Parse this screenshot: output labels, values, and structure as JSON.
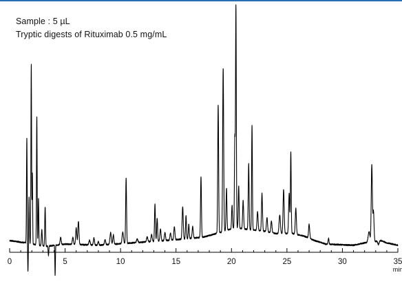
{
  "page": {
    "accent_color": "#2a6db5"
  },
  "annotations": {
    "line1": "Sample : 5 µL",
    "line2": "Tryptic digests of Rituximab 0.5 mg/mL"
  },
  "chart_data": {
    "type": "line",
    "title": "",
    "xlabel": "min",
    "ylabel": "",
    "xlim": [
      0,
      35
    ],
    "ylim": [
      -0.12,
      1.0
    ],
    "x_ticks": [
      0,
      5,
      10,
      15,
      20,
      25,
      30,
      35
    ],
    "x_tick_labels": [
      "0",
      "5",
      "10",
      "15",
      "20",
      "25",
      "30",
      "35"
    ],
    "line_color": "#000000",
    "grid": false,
    "baseline_segments": [
      [
        [
          0,
          0.0
        ],
        [
          1.5,
          -0.01
        ],
        [
          3.2,
          -0.025
        ],
        [
          5.0,
          -0.015
        ],
        [
          8.0,
          -0.02
        ],
        [
          11.0,
          -0.01
        ],
        [
          14.0,
          0.0
        ],
        [
          16.5,
          0.01
        ],
        [
          17.5,
          0.015
        ],
        [
          19.0,
          0.035
        ],
        [
          20.3,
          0.055
        ],
        [
          22.0,
          0.045
        ],
        [
          23.0,
          0.04
        ],
        [
          24.0,
          0.03
        ],
        [
          25.5,
          0.03
        ],
        [
          26.5,
          0.02
        ],
        [
          27.5,
          0.0
        ],
        [
          28.5,
          -0.015
        ],
        [
          31.0,
          -0.02
        ],
        [
          32.0,
          -0.01
        ],
        [
          33.5,
          0.0
        ],
        [
          34.0,
          -0.01
        ],
        [
          35.0,
          -0.02
        ]
      ]
    ],
    "peaks": [
      [
        1.55,
        0.45,
        0.03
      ],
      [
        1.65,
        -0.12,
        0.03
      ],
      [
        1.75,
        0.2,
        0.03
      ],
      [
        1.95,
        0.77,
        0.03
      ],
      [
        2.05,
        0.3,
        0.025
      ],
      [
        2.45,
        0.55,
        0.03
      ],
      [
        2.6,
        0.2,
        0.03
      ],
      [
        2.9,
        0.07,
        0.04
      ],
      [
        3.2,
        0.17,
        0.035
      ],
      [
        3.5,
        -0.04,
        0.03
      ],
      [
        4.1,
        -0.13,
        0.025
      ],
      [
        4.6,
        0.03,
        0.05
      ],
      [
        5.7,
        0.03,
        0.05
      ],
      [
        6.0,
        0.07,
        0.05
      ],
      [
        6.2,
        0.1,
        0.05
      ],
      [
        7.2,
        0.02,
        0.06
      ],
      [
        7.6,
        0.03,
        0.05
      ],
      [
        8.0,
        0.015,
        0.05
      ],
      [
        8.6,
        0.02,
        0.06
      ],
      [
        9.1,
        0.05,
        0.06
      ],
      [
        9.35,
        0.04,
        0.05
      ],
      [
        10.2,
        0.05,
        0.06
      ],
      [
        10.5,
        0.28,
        0.04
      ],
      [
        11.5,
        0.015,
        0.06
      ],
      [
        12.4,
        0.02,
        0.06
      ],
      [
        12.8,
        0.03,
        0.05
      ],
      [
        13.1,
        0.16,
        0.04
      ],
      [
        13.3,
        0.1,
        0.04
      ],
      [
        13.6,
        0.05,
        0.05
      ],
      [
        14.0,
        0.035,
        0.05
      ],
      [
        14.5,
        0.03,
        0.05
      ],
      [
        14.85,
        0.055,
        0.05
      ],
      [
        15.6,
        0.14,
        0.05
      ],
      [
        15.9,
        0.1,
        0.04
      ],
      [
        16.15,
        0.06,
        0.04
      ],
      [
        16.5,
        0.05,
        0.05
      ],
      [
        17.25,
        0.26,
        0.04
      ],
      [
        18.8,
        0.55,
        0.04
      ],
      [
        19.25,
        0.7,
        0.045
      ],
      [
        19.55,
        0.18,
        0.04
      ],
      [
        20.05,
        0.1,
        0.04
      ],
      [
        20.3,
        0.38,
        0.035
      ],
      [
        20.4,
        0.95,
        0.035
      ],
      [
        20.65,
        0.18,
        0.04
      ],
      [
        21.05,
        0.12,
        0.045
      ],
      [
        21.55,
        0.28,
        0.04
      ],
      [
        21.85,
        0.45,
        0.035
      ],
      [
        22.35,
        0.08,
        0.05
      ],
      [
        22.75,
        0.16,
        0.045
      ],
      [
        23.2,
        0.06,
        0.05
      ],
      [
        23.6,
        0.05,
        0.05
      ],
      [
        24.35,
        0.08,
        0.06
      ],
      [
        24.7,
        0.19,
        0.05
      ],
      [
        25.2,
        0.17,
        0.05
      ],
      [
        25.35,
        0.35,
        0.035
      ],
      [
        25.8,
        0.11,
        0.05
      ],
      [
        27.0,
        0.06,
        0.05
      ],
      [
        28.75,
        0.025,
        0.04
      ],
      [
        32.4,
        0.045,
        0.08
      ],
      [
        32.65,
        0.33,
        0.05
      ],
      [
        32.8,
        0.13,
        0.05
      ],
      [
        33.25,
        -0.015,
        0.06
      ]
    ]
  }
}
